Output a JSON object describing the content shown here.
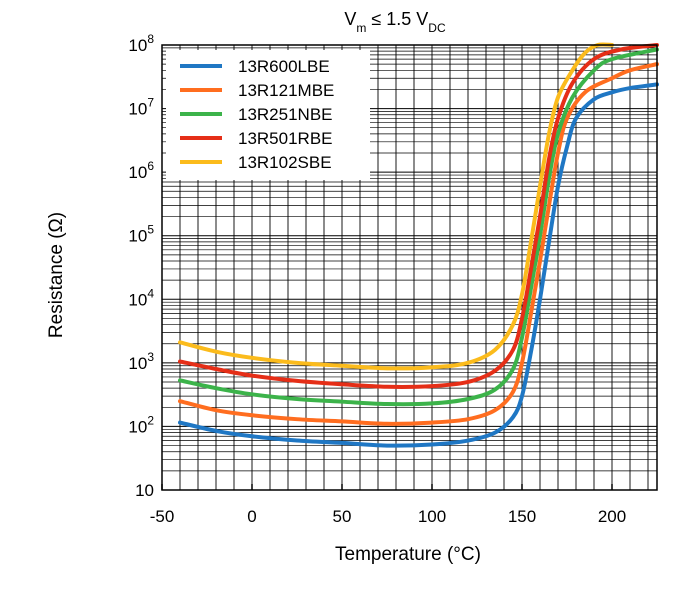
{
  "chart_data": {
    "type": "line",
    "title": "V",
    "title_sub_m": "m",
    "title_mid": " ≤ 1.5 V",
    "title_sub_dc": "DC",
    "xlabel": "Temperature (°C)",
    "ylabel": "Resistance (Ω)",
    "xlim": [
      -50,
      225
    ],
    "ylim": [
      10,
      100000000
    ],
    "y_scale": "log",
    "grid": true,
    "legend_position": "top-left",
    "x_ticks": [
      -50,
      0,
      50,
      100,
      150,
      200
    ],
    "x_tick_labels": [
      "-50",
      "0",
      "50",
      "100",
      "150",
      "200"
    ],
    "y_tick_labels": [
      {
        "base": "10",
        "exp": ""
      },
      {
        "base": "10",
        "exp": "2"
      },
      {
        "base": "10",
        "exp": "3"
      },
      {
        "base": "10",
        "exp": "4"
      },
      {
        "base": "10",
        "exp": "5"
      },
      {
        "base": "10",
        "exp": "6"
      },
      {
        "base": "10",
        "exp": "7"
      },
      {
        "base": "10",
        "exp": "8"
      }
    ],
    "series": [
      {
        "name": "13R600LBE",
        "color": "#1f77c4",
        "points": [
          [
            -40,
            115
          ],
          [
            -20,
            85
          ],
          [
            0,
            70
          ],
          [
            25,
            60
          ],
          [
            50,
            55
          ],
          [
            75,
            50
          ],
          [
            100,
            52
          ],
          [
            120,
            60
          ],
          [
            135,
            80
          ],
          [
            145,
            140
          ],
          [
            150,
            300
          ],
          [
            155,
            1500
          ],
          [
            160,
            10000
          ],
          [
            165,
            80000
          ],
          [
            170,
            600000
          ],
          [
            175,
            2500000
          ],
          [
            180,
            7000000
          ],
          [
            190,
            14000000
          ],
          [
            200,
            18000000
          ],
          [
            210,
            21000000
          ],
          [
            225,
            24000000
          ]
        ]
      },
      {
        "name": "13R121MBE",
        "color": "#ff6d1f",
        "points": [
          [
            -40,
            250
          ],
          [
            -20,
            180
          ],
          [
            0,
            150
          ],
          [
            25,
            130
          ],
          [
            50,
            120
          ],
          [
            75,
            110
          ],
          [
            100,
            115
          ],
          [
            120,
            130
          ],
          [
            135,
            180
          ],
          [
            145,
            350
          ],
          [
            150,
            1000
          ],
          [
            155,
            6000
          ],
          [
            160,
            40000
          ],
          [
            165,
            300000
          ],
          [
            170,
            2000000
          ],
          [
            175,
            7000000
          ],
          [
            185,
            18000000
          ],
          [
            200,
            30000000
          ],
          [
            210,
            40000000
          ],
          [
            225,
            50000000
          ]
        ]
      },
      {
        "name": "13R251NBE",
        "color": "#3cb34a",
        "points": [
          [
            -40,
            530
          ],
          [
            -20,
            400
          ],
          [
            0,
            320
          ],
          [
            25,
            270
          ],
          [
            50,
            245
          ],
          [
            75,
            225
          ],
          [
            100,
            230
          ],
          [
            120,
            270
          ],
          [
            135,
            380
          ],
          [
            145,
            800
          ],
          [
            150,
            2500
          ],
          [
            155,
            15000
          ],
          [
            160,
            100000
          ],
          [
            165,
            800000
          ],
          [
            170,
            4000000
          ],
          [
            178,
            15000000
          ],
          [
            190,
            40000000
          ],
          [
            200,
            60000000
          ],
          [
            225,
            85000000
          ]
        ]
      },
      {
        "name": "13R501RBE",
        "color": "#e52e17",
        "points": [
          [
            -40,
            1050
          ],
          [
            -20,
            800
          ],
          [
            0,
            630
          ],
          [
            25,
            520
          ],
          [
            50,
            460
          ],
          [
            75,
            420
          ],
          [
            100,
            430
          ],
          [
            120,
            500
          ],
          [
            135,
            750
          ],
          [
            145,
            1600
          ],
          [
            150,
            5000
          ],
          [
            155,
            30000
          ],
          [
            160,
            200000
          ],
          [
            165,
            1600000
          ],
          [
            170,
            7000000
          ],
          [
            178,
            25000000
          ],
          [
            190,
            60000000
          ],
          [
            205,
            85000000
          ],
          [
            225,
            100000000
          ]
        ]
      },
      {
        "name": "13R102SBE",
        "color": "#fbbb1c",
        "points": [
          [
            -40,
            2100
          ],
          [
            -20,
            1500
          ],
          [
            0,
            1200
          ],
          [
            25,
            1000
          ],
          [
            50,
            900
          ],
          [
            75,
            820
          ],
          [
            100,
            850
          ],
          [
            120,
            1000
          ],
          [
            135,
            1600
          ],
          [
            145,
            4000
          ],
          [
            150,
            12000
          ],
          [
            155,
            80000
          ],
          [
            160,
            600000
          ],
          [
            165,
            4000000
          ],
          [
            170,
            15000000
          ],
          [
            178,
            40000000
          ],
          [
            185,
            75000000
          ],
          [
            192,
            100000000
          ],
          [
            200,
            100000000
          ]
        ]
      }
    ]
  }
}
